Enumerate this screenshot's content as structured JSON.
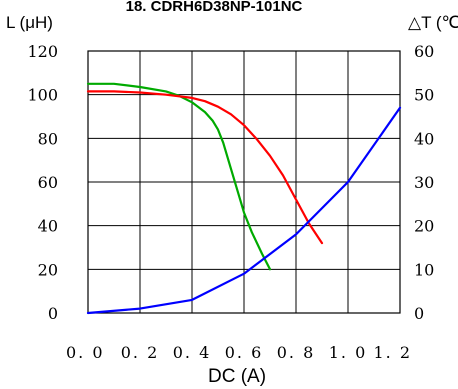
{
  "chart_data": {
    "type": "line",
    "title": "18. CDRH6D38NP-101NC",
    "xlabel": "DC (A)",
    "ylabel_left": "L (μH)",
    "ylabel_right": "△T (℃)",
    "x_ticks": [
      "0. 0",
      "0. 2",
      "0. 4",
      "0. 6",
      "0. 8",
      "1. 0",
      "1. 2"
    ],
    "y_left_ticks": [
      "0",
      "20",
      "40",
      "60",
      "80",
      "100",
      "120"
    ],
    "y_right_ticks": [
      "0",
      "10",
      "20",
      "30",
      "40",
      "50",
      "60"
    ],
    "xlim": [
      0,
      1.2
    ],
    "ylim_left": [
      0,
      120
    ],
    "ylim_right": [
      0,
      60
    ],
    "grid": true,
    "series": [
      {
        "color": "#00aa00",
        "axis": "left",
        "x": [
          0,
          0.05,
          0.1,
          0.2,
          0.3,
          0.35,
          0.4,
          0.45,
          0.48,
          0.5,
          0.52,
          0.55,
          0.58,
          0.6,
          0.63,
          0.67,
          0.7
        ],
        "y": [
          105,
          105,
          105,
          103.5,
          101.5,
          99.5,
          96.5,
          92,
          88,
          84,
          78,
          66,
          54,
          46,
          37,
          27,
          20
        ]
      },
      {
        "color": "#ff0000",
        "axis": "left",
        "x": [
          0,
          0.1,
          0.2,
          0.3,
          0.4,
          0.45,
          0.5,
          0.55,
          0.6,
          0.65,
          0.7,
          0.75,
          0.8,
          0.85,
          0.9
        ],
        "y": [
          101.5,
          101.5,
          101,
          100,
          98.5,
          97,
          94.5,
          91,
          86,
          79.5,
          72,
          63,
          52,
          41,
          32
        ]
      },
      {
        "color": "#0000ff",
        "axis": "right",
        "x": [
          0,
          0.2,
          0.4,
          0.6,
          0.8,
          1.0,
          1.2
        ],
        "y": [
          0,
          1,
          3,
          9,
          18,
          30,
          47
        ]
      }
    ]
  }
}
